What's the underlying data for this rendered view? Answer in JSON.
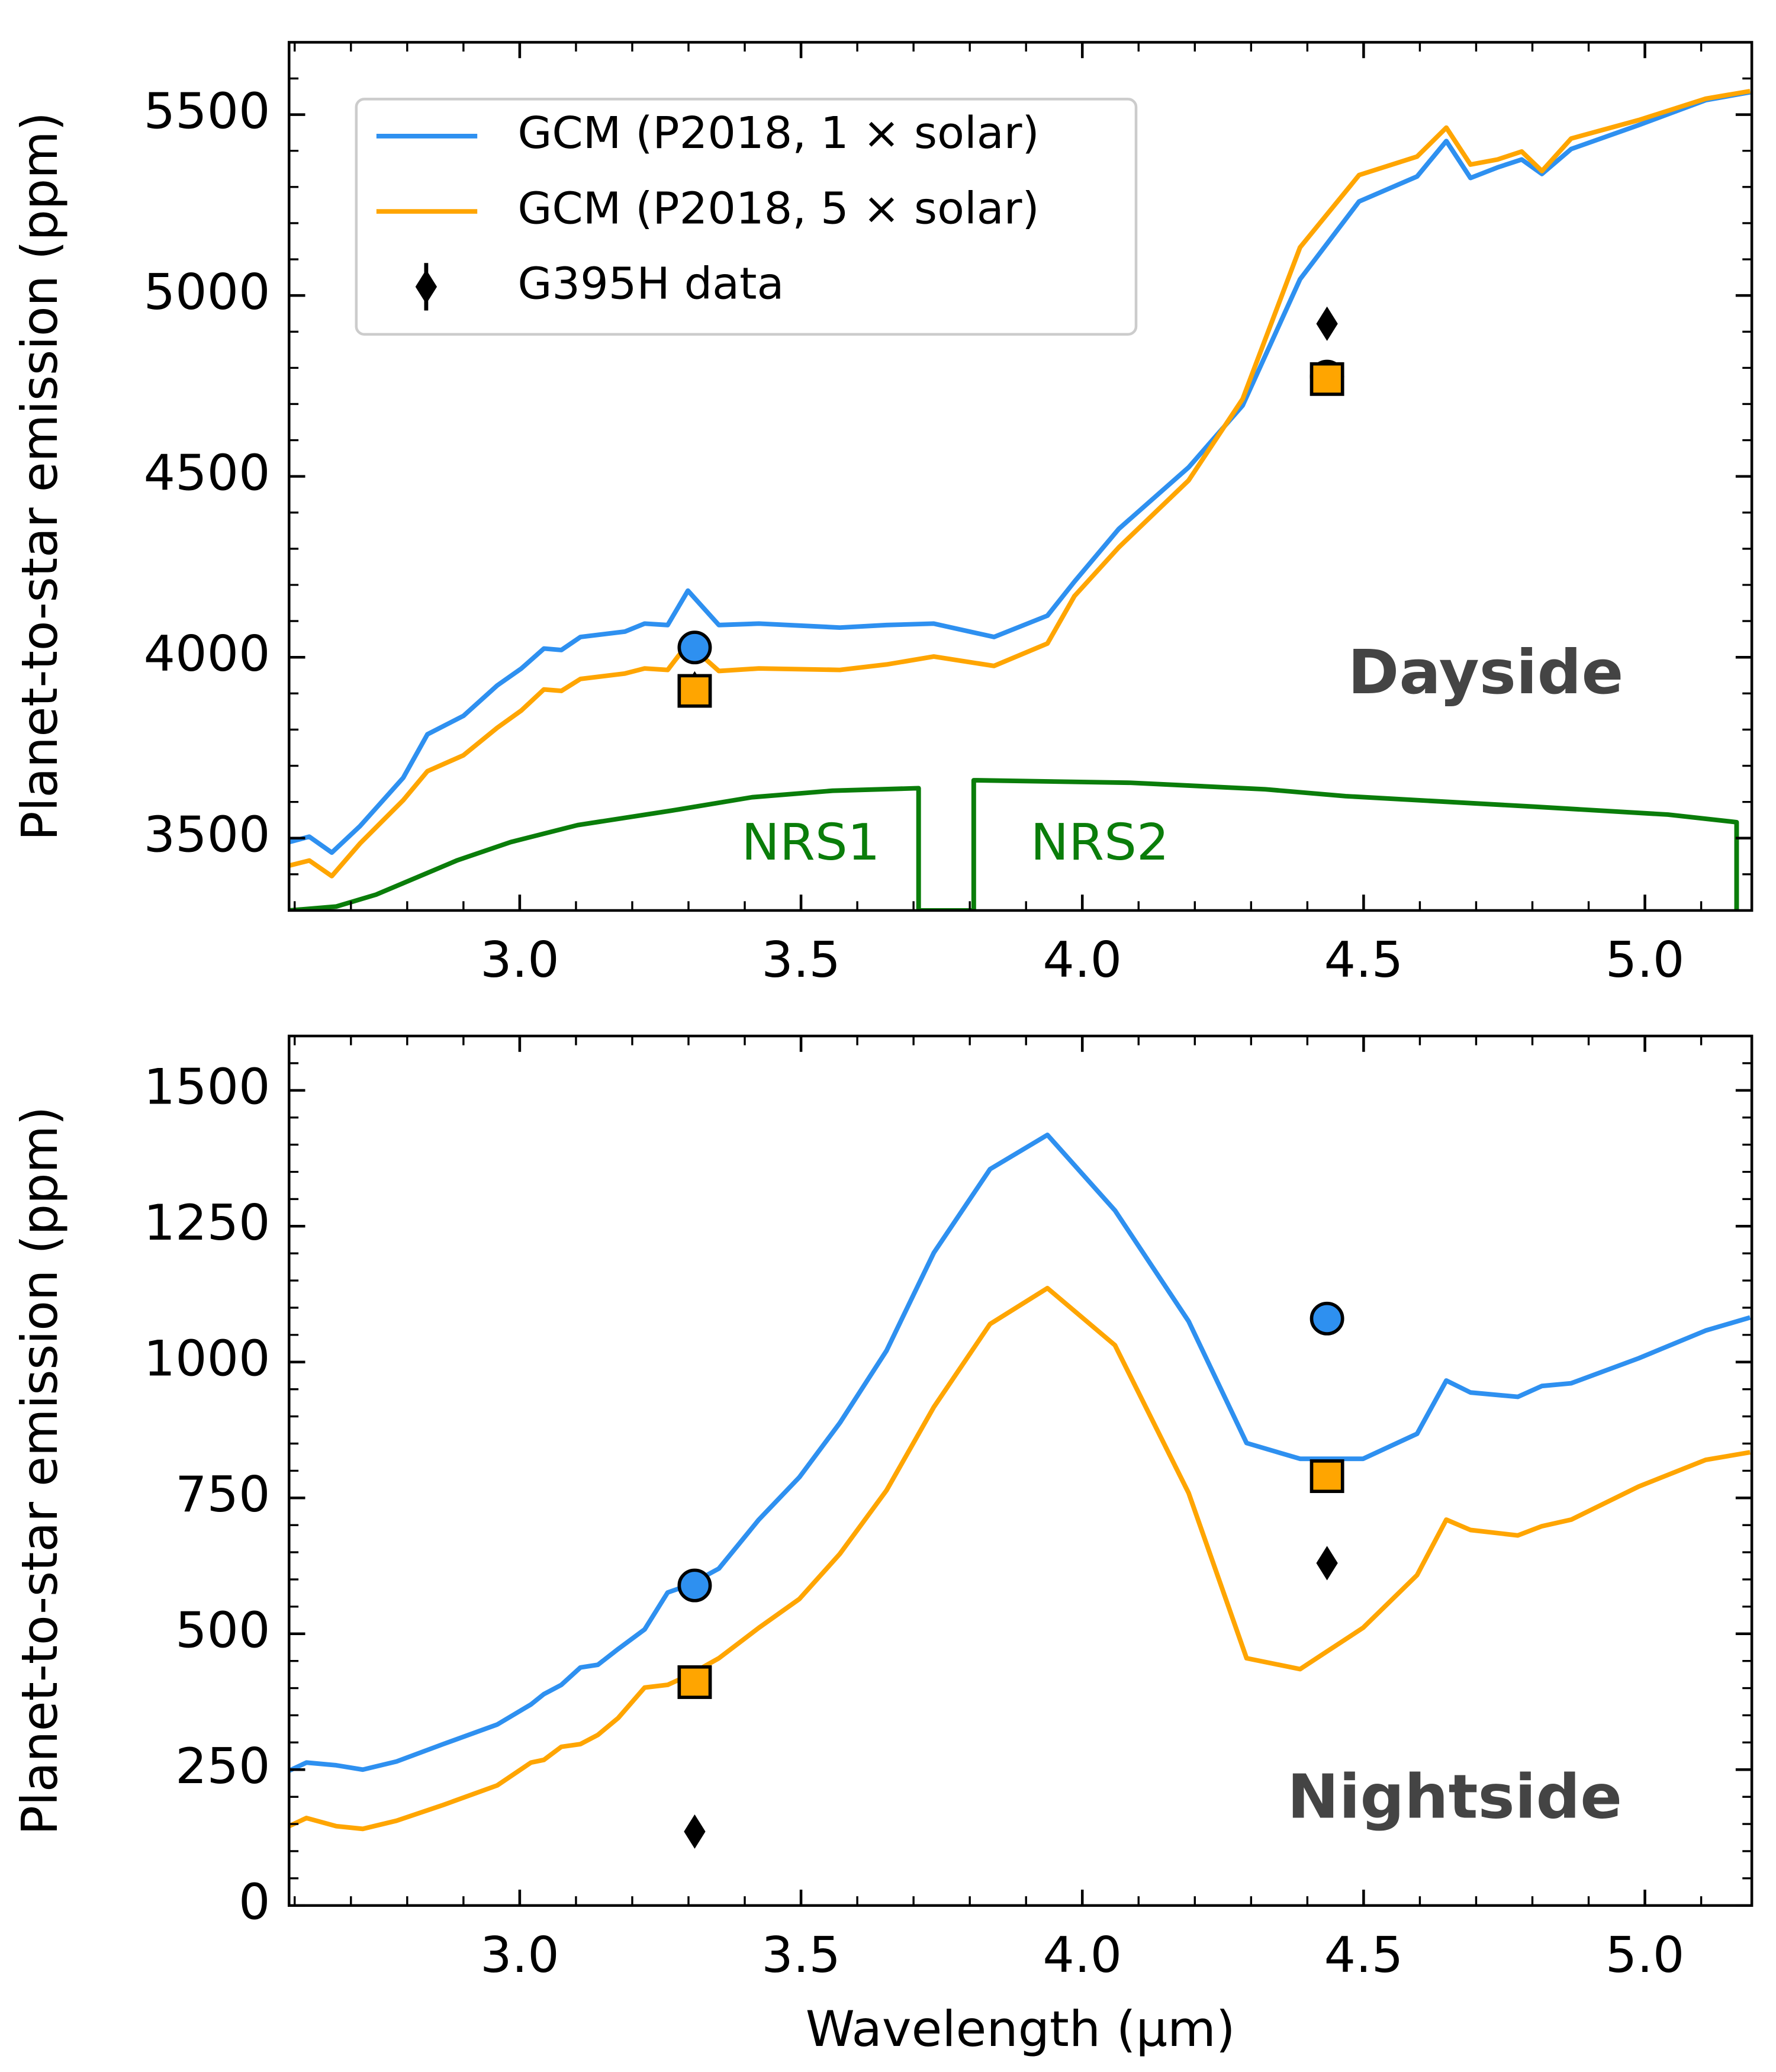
{
  "chart_data": [
    {
      "type": "line",
      "ylabel": "Planet-to-star emission (ppm)",
      "xlim": [
        2.59,
        5.19
      ],
      "ylim": [
        3300,
        5700
      ],
      "xticks": [
        {
          "value": 3,
          "label": "3.0"
        },
        3.5,
        {
          "value": 4,
          "label": "4.0"
        },
        4.5,
        {
          "value": 5,
          "label": "5.0"
        }
      ],
      "yticks": [
        3500,
        4000,
        4500,
        5000,
        5500
      ],
      "xminor": 5,
      "yminor": 5,
      "legend": "upper left",
      "annotations": [
        "NRS1",
        "NRS2",
        "Dayside"
      ],
      "series": [
        {
          "name": "GCM (P2018, 1 × solar)",
          "color": "#2e90f0",
          "x": [
            2.59,
            2.626,
            2.666,
            2.716,
            2.793,
            2.836,
            2.9,
            2.96,
            3.003,
            3.043,
            3.074,
            3.108,
            3.187,
            3.222,
            3.263,
            3.299,
            3.354,
            3.425,
            3.569,
            3.652,
            3.736,
            3.843,
            3.938,
            3.986,
            4.065,
            4.189,
            4.285,
            4.387,
            4.492,
            4.595,
            4.647,
            4.69,
            4.738,
            4.781,
            4.817,
            4.869,
            4.989,
            5.108,
            5.187
          ],
          "values": [
            3489,
            3504,
            3460,
            3533,
            3667,
            3787,
            3838,
            3922,
            3969,
            4024,
            4020,
            4056,
            4071,
            4093,
            4089,
            4184,
            4089,
            4093,
            4082,
            4089,
            4093,
            4056,
            4115,
            4209,
            4355,
            4525,
            4696,
            5045,
            5260,
            5329,
            5427,
            5325,
            5354,
            5376,
            5336,
            5405,
            5471,
            5540,
            5562
          ]
        },
        {
          "name": "GCM (P2018, 5 × solar)",
          "color": "#ffa500",
          "x": [
            2.59,
            2.626,
            2.666,
            2.716,
            2.793,
            2.836,
            2.9,
            2.96,
            3.003,
            3.043,
            3.074,
            3.108,
            3.187,
            3.222,
            3.263,
            3.299,
            3.354,
            3.425,
            3.569,
            3.652,
            3.736,
            3.843,
            3.938,
            3.986,
            4.065,
            4.189,
            4.285,
            4.387,
            4.492,
            4.595,
            4.647,
            4.69,
            4.738,
            4.781,
            4.817,
            4.869,
            4.989,
            5.108,
            5.187
          ],
          "values": [
            3424,
            3438,
            3395,
            3485,
            3605,
            3685,
            3729,
            3805,
            3853,
            3911,
            3907,
            3940,
            3955,
            3969,
            3965,
            4038,
            3962,
            3969,
            3965,
            3980,
            4002,
            3976,
            4038,
            4169,
            4304,
            4489,
            4714,
            5133,
            5333,
            5384,
            5464,
            5362,
            5376,
            5398,
            5344,
            5434,
            5485,
            5544,
            5565
          ]
        },
        {
          "name": "G395H data",
          "color": "#000000",
          "marker": "diamond",
          "x": [
            3.311,
            4.435
          ],
          "values": [
            3914,
            4922
          ],
          "errors": [
            15,
            15
          ]
        },
        {
          "color": "#2e90f0",
          "marker": "circle",
          "x": [
            3.311,
            4.435
          ],
          "values": [
            4027,
            4776
          ]
        },
        {
          "color": "#ffa500",
          "marker": "square",
          "x": [
            3.311,
            4.435
          ],
          "values": [
            3907,
            4769
          ]
        },
        {
          "color": "#0a7d0a",
          "x": [
            2.59,
            2.674,
            2.745,
            2.888,
            2.984,
            3.103,
            3.27,
            3.413,
            3.556,
            3.709,
            3.709,
            3.807,
            3.807,
            4.086,
            4.325,
            4.468,
            4.802,
            5.041,
            5.163,
            5.163
          ],
          "values": [
            3300,
            3311,
            3344,
            3438,
            3489,
            3536,
            3576,
            3613,
            3631,
            3638,
            3300,
            3300,
            3660,
            3653,
            3635,
            3616,
            3587,
            3565,
            3544,
            3300
          ]
        }
      ]
    },
    {
      "type": "line",
      "ylabel": "Planet-to-star emission (ppm)",
      "xlabel": "Wavelength (μm)",
      "xlim": [
        2.59,
        5.19
      ],
      "ylim": [
        0,
        1600
      ],
      "xticks": [
        {
          "value": 3,
          "label": "3.0"
        },
        3.5,
        {
          "value": 4,
          "label": "4.0"
        },
        4.5,
        {
          "value": 5,
          "label": "5.0"
        }
      ],
      "yticks": [
        0,
        250,
        500,
        750,
        1000,
        1250,
        1500
      ],
      "xminor": 5,
      "yminor": 5,
      "annotations": [
        "Nightside"
      ],
      "series": [
        {
          "color": "#2e90f0",
          "x": [
            2.59,
            2.621,
            2.674,
            2.721,
            2.781,
            2.864,
            2.96,
            3.02,
            3.043,
            3.074,
            3.108,
            3.139,
            3.175,
            3.222,
            3.263,
            3.299,
            3.354,
            3.425,
            3.497,
            3.569,
            3.652,
            3.736,
            3.836,
            3.938,
            4.058,
            4.189,
            4.292,
            4.387,
            4.499,
            4.595,
            4.647,
            4.69,
            4.774,
            4.817,
            4.869,
            4.989,
            5.108,
            5.187
          ],
          "values": [
            248,
            263,
            258,
            250,
            265,
            297,
            333,
            370,
            389,
            406,
            438,
            443,
            472,
            508,
            576,
            589,
            620,
            710,
            788,
            888,
            1021,
            1201,
            1355,
            1418,
            1279,
            1075,
            851,
            822,
            822,
            868,
            966,
            944,
            936,
            956,
            961,
            1007,
            1058,
            1082
          ]
        },
        {
          "color": "#ffa500",
          "x": [
            2.59,
            2.621,
            2.674,
            2.721,
            2.781,
            2.864,
            2.96,
            3.02,
            3.043,
            3.074,
            3.108,
            3.139,
            3.175,
            3.222,
            3.263,
            3.299,
            3.354,
            3.425,
            3.497,
            3.569,
            3.652,
            3.736,
            3.836,
            3.938,
            4.058,
            4.189,
            4.292,
            4.387,
            4.499,
            4.595,
            4.647,
            4.69,
            4.774,
            4.817,
            4.869,
            4.989,
            5.108,
            5.187
          ],
          "values": [
            146,
            161,
            146,
            141,
            156,
            185,
            221,
            263,
            268,
            292,
            297,
            314,
            345,
            401,
            406,
            423,
            455,
            511,
            564,
            647,
            764,
            917,
            1070,
            1136,
            1031,
            759,
            455,
            435,
            511,
            608,
            710,
            691,
            681,
            698,
            710,
            771,
            820,
            834
          ]
        },
        {
          "color": "#000000",
          "marker": "diamond",
          "x": [
            3.311,
            4.435
          ],
          "values": [
            136,
            630
          ],
          "errors": [
            10,
            10
          ]
        },
        {
          "color": "#2e90f0",
          "marker": "circle",
          "x": [
            3.311,
            4.435
          ],
          "values": [
            589,
            1080
          ]
        },
        {
          "color": "#ffa500",
          "marker": "square",
          "x": [
            3.311,
            4.435
          ],
          "values": [
            411,
            790
          ]
        }
      ]
    }
  ]
}
